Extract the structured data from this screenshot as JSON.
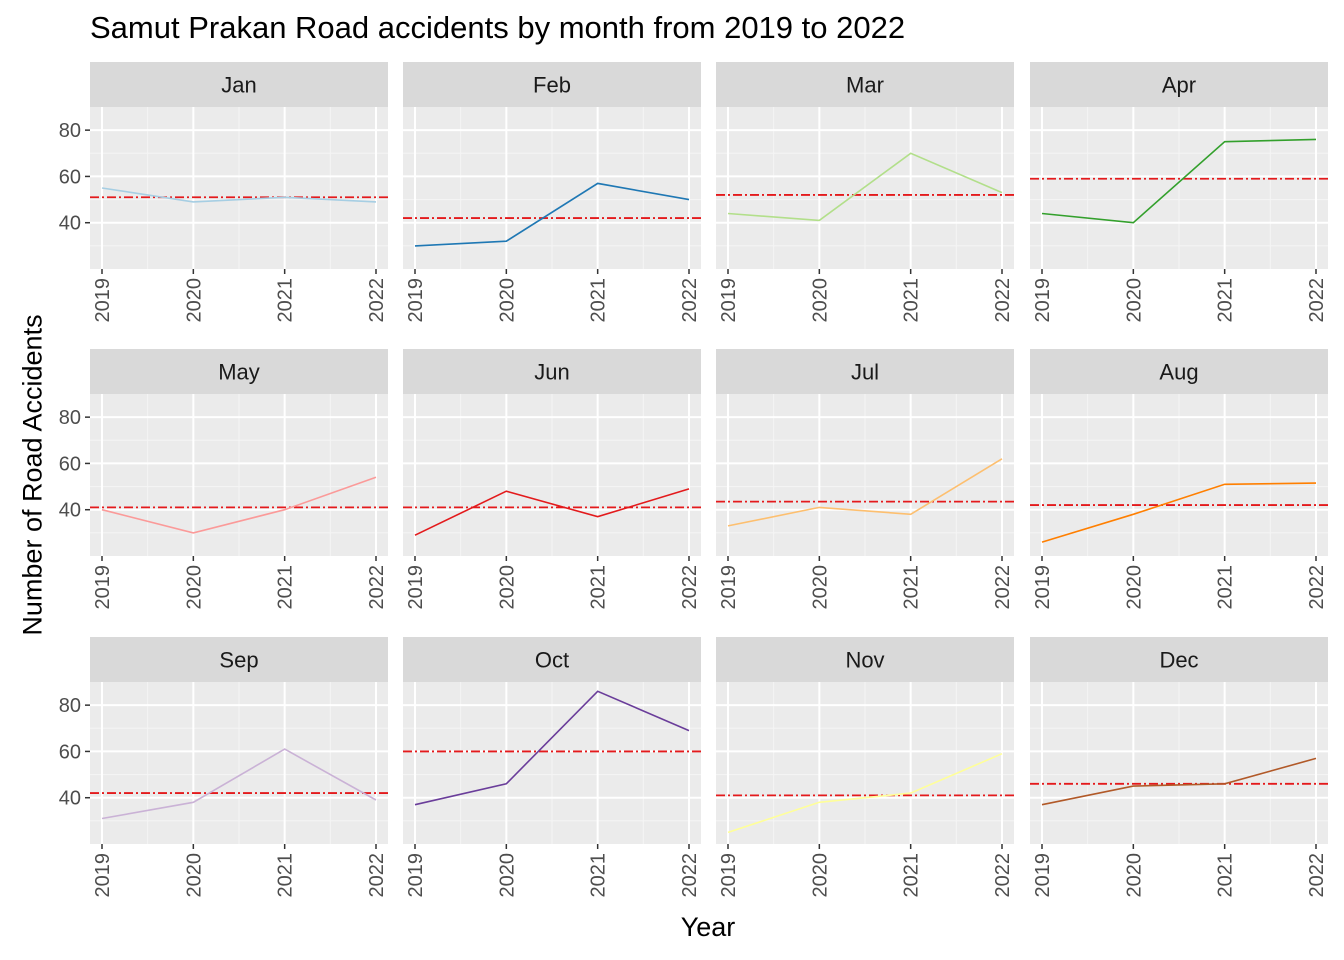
{
  "chart_data": {
    "type": "line",
    "title": "Samut Prakan Road accidents by month from 2019 to 2022",
    "xlabel": "Year",
    "ylabel": "Number of Road Accidents",
    "x": [
      "2019",
      "2020",
      "2021",
      "2022"
    ],
    "y_ticks": [
      40,
      60,
      80
    ],
    "ylim": [
      20,
      90
    ],
    "reference_line_color": "#E41A1C",
    "facets": [
      {
        "label": "Jan",
        "color": "#A6CEE3",
        "values": [
          55,
          49,
          51,
          49
        ],
        "mean": 51
      },
      {
        "label": "Feb",
        "color": "#1F78B4",
        "values": [
          30,
          32,
          57,
          50
        ],
        "mean": 42
      },
      {
        "label": "Mar",
        "color": "#B2DF8A",
        "values": [
          44,
          41,
          70,
          53
        ],
        "mean": 52
      },
      {
        "label": "Apr",
        "color": "#33A02C",
        "values": [
          44,
          40,
          75,
          76
        ],
        "mean": 59
      },
      {
        "label": "May",
        "color": "#FB9A99",
        "values": [
          40,
          30,
          40,
          54
        ],
        "mean": 41
      },
      {
        "label": "Jun",
        "color": "#E31A1C",
        "values": [
          29,
          48,
          37,
          49
        ],
        "mean": 41
      },
      {
        "label": "Jul",
        "color": "#FDBF6F",
        "values": [
          33,
          41,
          38,
          62
        ],
        "mean": 43.5
      },
      {
        "label": "Aug",
        "color": "#FF7F00",
        "values": [
          26,
          38,
          51,
          51.5
        ],
        "mean": 42
      },
      {
        "label": "Sep",
        "color": "#CAB2D6",
        "values": [
          31,
          38,
          61,
          39
        ],
        "mean": 42
      },
      {
        "label": "Oct",
        "color": "#6A3D9A",
        "values": [
          37,
          46,
          86,
          69
        ],
        "mean": 60
      },
      {
        "label": "Nov",
        "color": "#FFFF99",
        "values": [
          25,
          38,
          42,
          59
        ],
        "mean": 41
      },
      {
        "label": "Dec",
        "color": "#B15928",
        "values": [
          37,
          45,
          46,
          57
        ],
        "mean": 46
      }
    ]
  }
}
